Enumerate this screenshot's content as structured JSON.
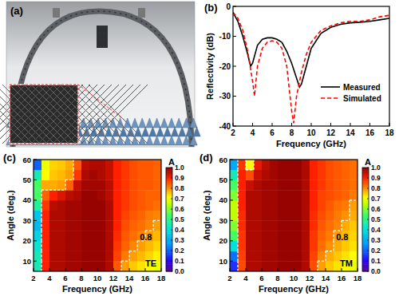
{
  "chart_data": [
    {
      "type": "image",
      "panel": "(a)"
    },
    {
      "type": "line",
      "panel": "(b)",
      "x_label": "Frequency (GHz)",
      "y_label": "Reflectivity (dB)",
      "xlim": [
        2,
        18
      ],
      "xticks": [
        2,
        4,
        6,
        8,
        10,
        12,
        14,
        16,
        18
      ],
      "ylim": [
        -40,
        0
      ],
      "yticks": [
        0,
        -10,
        -20,
        -30,
        -40
      ],
      "legend": "center right",
      "series": [
        {
          "name": "Measured",
          "color": "#000000",
          "line_style": "solid",
          "x": [
            2,
            2.5,
            3,
            3.5,
            3.8,
            4,
            4.5,
            5,
            5.5,
            6,
            6.5,
            7,
            7.5,
            8,
            8.5,
            8.8,
            9,
            9.5,
            10,
            11,
            12,
            13,
            14,
            15,
            16,
            17,
            18
          ],
          "values": [
            -2,
            -5,
            -10,
            -16,
            -20,
            -19,
            -13,
            -11,
            -10.5,
            -10.5,
            -11,
            -12,
            -15,
            -19,
            -24,
            -27,
            -26,
            -20,
            -14,
            -9,
            -7,
            -6,
            -5.5,
            -5.3,
            -5,
            -4.5,
            -4
          ]
        },
        {
          "name": "Simulated",
          "color": "#ff0000",
          "line_style": "dashed",
          "x": [
            2,
            2.5,
            3,
            3.5,
            4,
            4.2,
            4.5,
            5,
            5.5,
            6,
            6.5,
            7,
            7.5,
            8,
            8.2,
            8.5,
            9,
            9.5,
            10,
            11,
            12,
            13,
            14,
            15,
            16,
            17,
            18
          ],
          "values": [
            -2,
            -4,
            -8,
            -15,
            -25,
            -30,
            -20,
            -14,
            -12,
            -11.5,
            -12,
            -14,
            -20,
            -35,
            -39,
            -30,
            -22,
            -16,
            -12,
            -8,
            -6.5,
            -5.5,
            -5,
            -5,
            -4.5,
            -3.5,
            -3
          ]
        }
      ]
    },
    {
      "type": "heatmap",
      "panel": "(c)",
      "annotation": "TE",
      "contour_level": 0.8,
      "x_label": "Frequency (GHz)",
      "y_label": "Angle (deg.)",
      "xlim": [
        2,
        18
      ],
      "xticks": [
        2,
        4,
        6,
        8,
        10,
        12,
        14,
        16,
        18
      ],
      "ylim": [
        5,
        60
      ],
      "yticks": [
        10,
        20,
        30,
        40,
        50,
        60
      ],
      "x_bins": [
        2,
        3,
        4,
        5,
        6,
        7,
        8,
        9,
        10,
        11,
        12,
        13,
        14,
        15,
        16,
        17,
        18
      ],
      "y_bins": [
        5,
        10,
        15,
        20,
        25,
        30,
        35,
        40,
        45,
        50,
        55,
        60
      ],
      "cells": [
        [
          0.45,
          0.9,
          0.97,
          0.97,
          0.98,
          0.98,
          0.99,
          0.99,
          0.99,
          0.97,
          0.85,
          0.79,
          0.76,
          0.74,
          0.72,
          0.7
        ],
        [
          0.45,
          0.9,
          0.97,
          0.97,
          0.98,
          0.98,
          0.99,
          0.99,
          0.99,
          0.97,
          0.87,
          0.82,
          0.79,
          0.77,
          0.75,
          0.73
        ],
        [
          0.42,
          0.9,
          0.97,
          0.97,
          0.98,
          0.98,
          0.99,
          0.99,
          0.99,
          0.97,
          0.88,
          0.84,
          0.81,
          0.79,
          0.77,
          0.75
        ],
        [
          0.38,
          0.9,
          0.97,
          0.97,
          0.98,
          0.98,
          0.99,
          0.99,
          0.99,
          0.97,
          0.89,
          0.85,
          0.83,
          0.81,
          0.79,
          0.77
        ],
        [
          0.33,
          0.9,
          0.97,
          0.97,
          0.98,
          0.98,
          0.99,
          0.99,
          0.99,
          0.97,
          0.9,
          0.86,
          0.84,
          0.83,
          0.81,
          0.79
        ],
        [
          0.35,
          0.9,
          0.97,
          0.97,
          0.98,
          0.98,
          0.99,
          0.99,
          0.99,
          0.97,
          0.9,
          0.87,
          0.85,
          0.84,
          0.82,
          0.81
        ],
        [
          0.48,
          0.88,
          0.96,
          0.97,
          0.98,
          0.98,
          0.99,
          0.99,
          0.99,
          0.97,
          0.9,
          0.88,
          0.86,
          0.85,
          0.84,
          0.83
        ],
        [
          0.55,
          0.84,
          0.9,
          0.93,
          0.96,
          0.97,
          0.99,
          0.99,
          0.98,
          0.96,
          0.9,
          0.88,
          0.86,
          0.85,
          0.84,
          0.84
        ],
        [
          0.55,
          0.78,
          0.78,
          0.79,
          0.84,
          0.95,
          0.98,
          0.98,
          0.98,
          0.96,
          0.9,
          0.88,
          0.86,
          0.85,
          0.85,
          0.84
        ],
        [
          0.45,
          0.72,
          0.76,
          0.77,
          0.79,
          0.88,
          0.97,
          0.98,
          0.97,
          0.95,
          0.9,
          0.88,
          0.86,
          0.85,
          0.85,
          0.84
        ],
        [
          0.2,
          0.7,
          0.75,
          0.76,
          0.78,
          0.85,
          0.96,
          0.97,
          0.97,
          0.95,
          0.9,
          0.88,
          0.86,
          0.85,
          0.85,
          0.84
        ]
      ],
      "colorbar": {
        "label": "A",
        "range": [
          0,
          1
        ],
        "ticks": [
          {
            "value": 0,
            "label": "0.0"
          },
          {
            "value": 0.1,
            "label": "0.1"
          },
          {
            "value": 0.2,
            "label": "0.2"
          },
          {
            "value": 0.3,
            "label": "0.3"
          },
          {
            "value": 0.4,
            "label": "0.4"
          },
          {
            "value": 0.5,
            "label": "0.5"
          },
          {
            "value": 0.6,
            "label": "0.6"
          },
          {
            "value": 0.7,
            "label": "0.7"
          },
          {
            "value": 0.8,
            "label": "0.8"
          },
          {
            "value": 0.9,
            "label": "0.9"
          },
          {
            "value": 1,
            "label": "1.0"
          }
        ]
      }
    },
    {
      "type": "heatmap",
      "panel": "(d)",
      "annotation": "TM",
      "contour_level": 0.8,
      "x_label": "Frequency (GHz)",
      "y_label": "Angle (deg.)",
      "xlim": [
        2,
        18
      ],
      "xticks": [
        2,
        4,
        6,
        8,
        10,
        12,
        14,
        16,
        18
      ],
      "ylim": [
        5,
        60
      ],
      "yticks": [
        10,
        20,
        30,
        40,
        50,
        60
      ],
      "x_bins": [
        2,
        3,
        4,
        5,
        6,
        7,
        8,
        9,
        10,
        11,
        12,
        13,
        14,
        15,
        16,
        17,
        18
      ],
      "y_bins": [
        5,
        10,
        15,
        20,
        25,
        30,
        35,
        40,
        45,
        50,
        55,
        60
      ],
      "cells": [
        [
          0.15,
          0.86,
          0.97,
          0.97,
          0.98,
          0.98,
          0.99,
          0.99,
          0.99,
          0.97,
          0.86,
          0.79,
          0.76,
          0.74,
          0.72,
          0.7
        ],
        [
          0.22,
          0.87,
          0.97,
          0.97,
          0.98,
          0.98,
          0.99,
          0.99,
          0.99,
          0.97,
          0.87,
          0.81,
          0.78,
          0.76,
          0.74,
          0.72
        ],
        [
          0.4,
          0.88,
          0.97,
          0.97,
          0.98,
          0.98,
          0.99,
          0.99,
          0.99,
          0.97,
          0.88,
          0.83,
          0.8,
          0.78,
          0.76,
          0.74
        ],
        [
          0.55,
          0.88,
          0.97,
          0.97,
          0.98,
          0.98,
          0.99,
          0.99,
          0.99,
          0.97,
          0.88,
          0.84,
          0.82,
          0.79,
          0.77,
          0.75
        ],
        [
          0.6,
          0.89,
          0.97,
          0.97,
          0.98,
          0.98,
          0.99,
          0.99,
          0.99,
          0.97,
          0.89,
          0.85,
          0.83,
          0.81,
          0.78,
          0.76
        ],
        [
          0.65,
          0.89,
          0.97,
          0.97,
          0.98,
          0.98,
          0.99,
          0.99,
          0.99,
          0.97,
          0.89,
          0.86,
          0.84,
          0.82,
          0.8,
          0.78
        ],
        [
          0.65,
          0.9,
          0.97,
          0.97,
          0.98,
          0.98,
          0.99,
          0.99,
          0.99,
          0.97,
          0.9,
          0.87,
          0.85,
          0.83,
          0.82,
          0.79
        ],
        [
          0.6,
          0.9,
          0.97,
          0.97,
          0.98,
          0.98,
          0.99,
          0.99,
          0.99,
          0.97,
          0.9,
          0.87,
          0.86,
          0.85,
          0.84,
          0.82
        ],
        [
          0.55,
          0.9,
          0.95,
          0.97,
          0.98,
          0.98,
          0.99,
          0.99,
          0.99,
          0.97,
          0.9,
          0.88,
          0.86,
          0.85,
          0.84,
          0.83
        ],
        [
          0.45,
          0.9,
          0.86,
          0.95,
          0.97,
          0.98,
          0.99,
          0.99,
          0.99,
          0.97,
          0.9,
          0.88,
          0.86,
          0.85,
          0.84,
          0.83
        ],
        [
          0.3,
          0.88,
          0.72,
          0.92,
          0.96,
          0.98,
          0.99,
          0.99,
          0.99,
          0.97,
          0.9,
          0.88,
          0.86,
          0.85,
          0.84,
          0.83
        ]
      ],
      "colorbar": {
        "label": "A",
        "range": [
          0,
          1
        ],
        "ticks": [
          {
            "value": 0,
            "label": "0.0"
          },
          {
            "value": 0.1,
            "label": "0.1"
          },
          {
            "value": 0.2,
            "label": "0.2"
          },
          {
            "value": 0.3,
            "label": "0.3"
          },
          {
            "value": 0.4,
            "label": "0.4"
          },
          {
            "value": 0.5,
            "label": "0.5"
          },
          {
            "value": 0.6,
            "label": "0.6"
          },
          {
            "value": 0.7,
            "label": "0.7"
          },
          {
            "value": 0.8,
            "label": "0.8"
          },
          {
            "value": 0.9,
            "label": "0.9"
          },
          {
            "value": 1,
            "label": "1.0"
          }
        ]
      }
    }
  ]
}
